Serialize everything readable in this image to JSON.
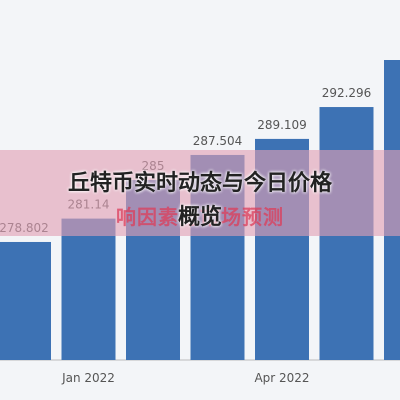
{
  "title": "丘特币实时动态与今日价格概览",
  "subtitle": "响因素与市场预测",
  "chart_data": {
    "type": "bar",
    "categories": [
      null,
      "Jan 2022",
      null,
      null,
      "Apr 2022",
      null,
      null
    ],
    "values": [
      278.802,
      281.14,
      285,
      287.504,
      289.109,
      292.296,
      297
    ],
    "color": "#3d72b4",
    "ylim": [
      267,
      303
    ]
  }
}
